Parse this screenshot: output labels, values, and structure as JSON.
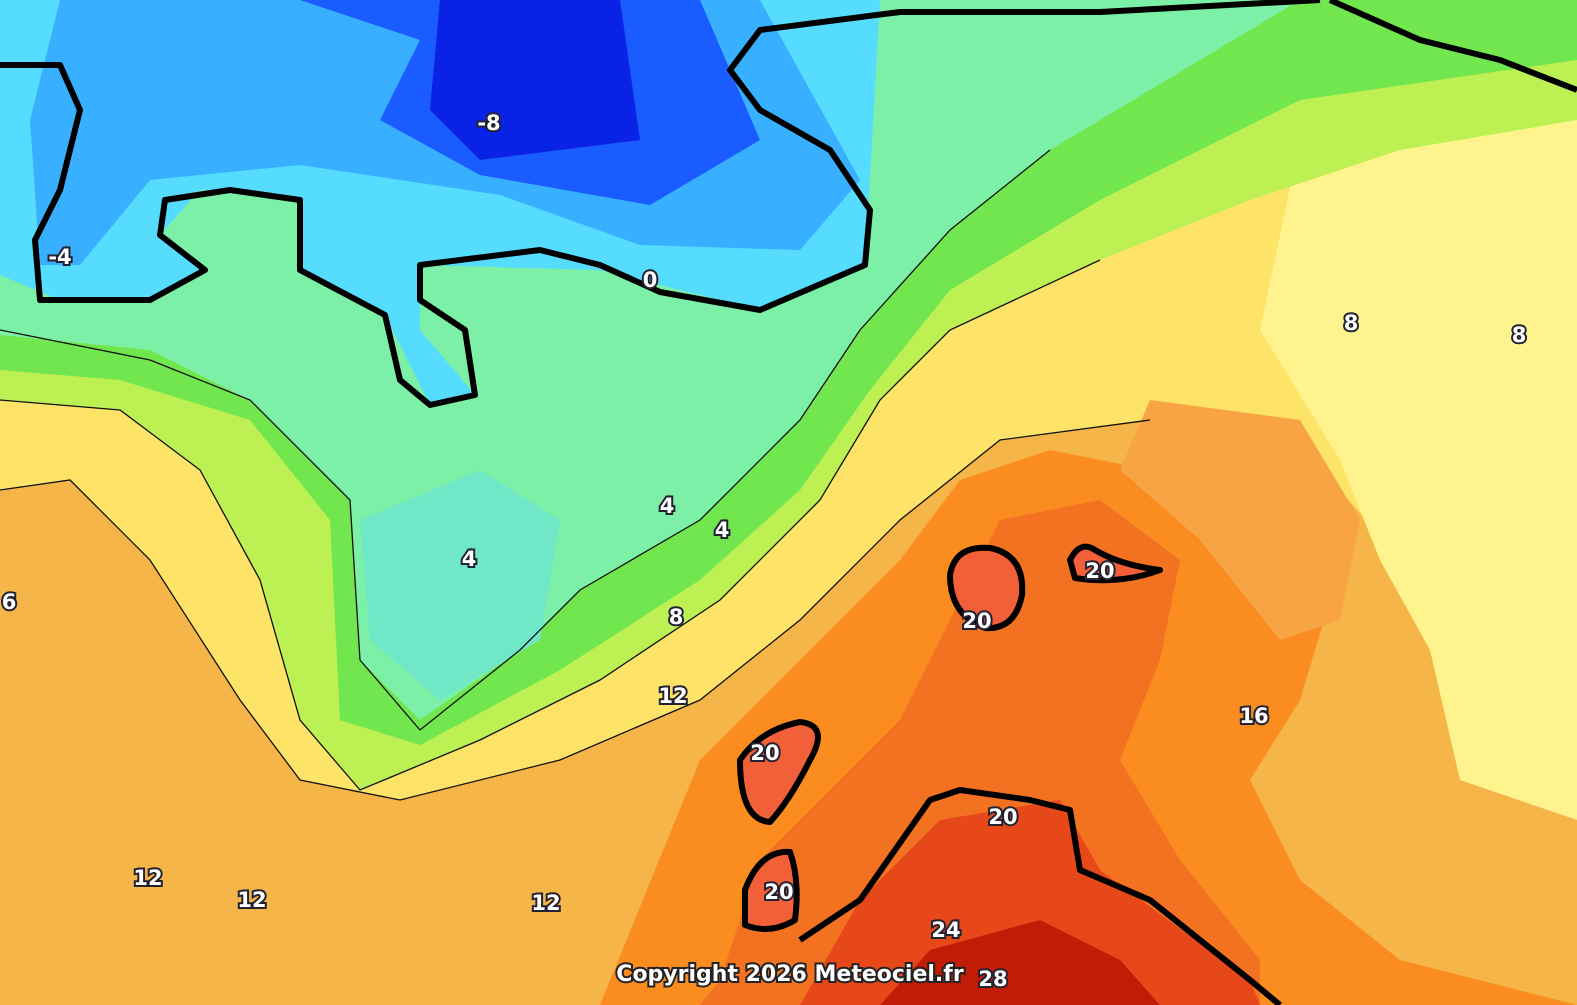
{
  "map": {
    "isotherm_labels": [
      -8,
      -4,
      0,
      4,
      4,
      4,
      8,
      12,
      12,
      12,
      12,
      6,
      20,
      20,
      20,
      20,
      20,
      24,
      28,
      16,
      8,
      8
    ],
    "copyright": "Copyright 2026 Meteociel.fr"
  }
}
